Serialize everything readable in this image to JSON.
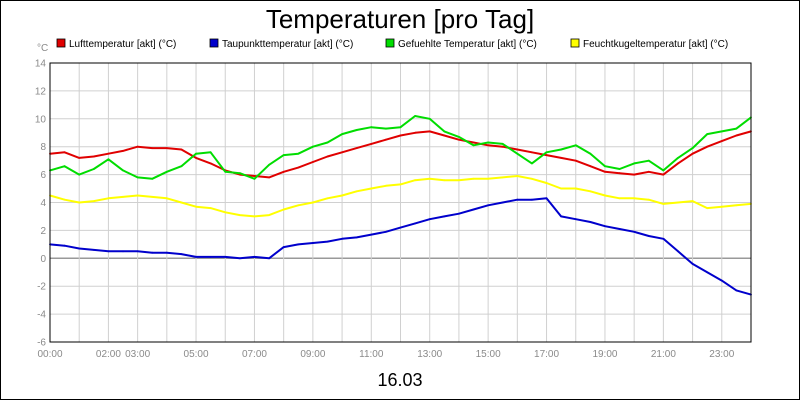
{
  "chart_data": {
    "type": "line",
    "title": "Temperaturen [pro Tag]",
    "date_label": "16.03",
    "yunit": "°C",
    "ylim": [
      -6,
      14
    ],
    "yticks": [
      -6,
      -4,
      -2,
      0,
      2,
      4,
      6,
      8,
      10,
      12,
      14
    ],
    "xlim": [
      0,
      24
    ],
    "xticks": [
      {
        "x": 0,
        "label": "00:00"
      },
      {
        "x": 2,
        "label": "02:00"
      },
      {
        "x": 3,
        "label": "03:00"
      },
      {
        "x": 5,
        "label": "05:00"
      },
      {
        "x": 7,
        "label": "07:00"
      },
      {
        "x": 9,
        "label": "09:00"
      },
      {
        "x": 11,
        "label": "11:00"
      },
      {
        "x": 13,
        "label": "13:00"
      },
      {
        "x": 15,
        "label": "15:00"
      },
      {
        "x": 17,
        "label": "17:00"
      },
      {
        "x": 19,
        "label": "19:00"
      },
      {
        "x": 21,
        "label": "21:00"
      },
      {
        "x": 23,
        "label": "23:00"
      }
    ],
    "grid": true,
    "legend_position": "top",
    "x": [
      0,
      0.5,
      1,
      1.5,
      2,
      2.5,
      3,
      3.5,
      4,
      4.5,
      5,
      5.5,
      6,
      6.5,
      7,
      7.5,
      8,
      8.5,
      9,
      9.5,
      10,
      10.5,
      11,
      11.5,
      12,
      12.5,
      13,
      13.5,
      14,
      14.5,
      15,
      15.5,
      16,
      16.5,
      17,
      17.5,
      18,
      18.5,
      19,
      19.5,
      20,
      20.5,
      21,
      21.5,
      22,
      22.5,
      23,
      23.5,
      24
    ],
    "series": [
      {
        "name": "Lufttemperatur [akt] (°C)",
        "color": "#e00000",
        "values": [
          7.5,
          7.6,
          7.2,
          7.3,
          7.5,
          7.7,
          8.0,
          7.9,
          7.9,
          7.8,
          7.2,
          6.8,
          6.3,
          6.0,
          5.9,
          5.8,
          6.2,
          6.5,
          6.9,
          7.3,
          7.6,
          7.9,
          8.2,
          8.5,
          8.8,
          9.0,
          9.1,
          8.8,
          8.5,
          8.3,
          8.1,
          8.0,
          7.8,
          7.6,
          7.4,
          7.2,
          7.0,
          6.6,
          6.2,
          6.1,
          6.0,
          6.2,
          6.0,
          6.8,
          7.5,
          8.0,
          8.4,
          8.8,
          9.1
        ]
      },
      {
        "name": "Taupunkttemperatur [akt] (°C)",
        "color": "#0000cc",
        "values": [
          1.0,
          0.9,
          0.7,
          0.6,
          0.5,
          0.5,
          0.5,
          0.4,
          0.4,
          0.3,
          0.1,
          0.1,
          0.1,
          0.0,
          0.1,
          0.0,
          0.8,
          1.0,
          1.1,
          1.2,
          1.4,
          1.5,
          1.7,
          1.9,
          2.2,
          2.5,
          2.8,
          3.0,
          3.2,
          3.5,
          3.8,
          4.0,
          4.2,
          4.2,
          4.3,
          3.0,
          2.8,
          2.6,
          2.3,
          2.1,
          1.9,
          1.6,
          1.4,
          0.5,
          -0.4,
          -1.0,
          -1.6,
          -2.3,
          -2.6
        ]
      },
      {
        "name": "Gefuehlte Temperatur [akt] (°C)",
        "color": "#00dd00",
        "values": [
          6.3,
          6.6,
          6.0,
          6.4,
          7.1,
          6.3,
          5.8,
          5.7,
          6.2,
          6.6,
          7.5,
          7.6,
          6.2,
          6.1,
          5.7,
          6.7,
          7.4,
          7.5,
          8.0,
          8.3,
          8.9,
          9.2,
          9.4,
          9.3,
          9.4,
          10.2,
          10.0,
          9.1,
          8.7,
          8.1,
          8.3,
          8.2,
          7.5,
          6.8,
          7.6,
          7.8,
          8.1,
          7.5,
          6.6,
          6.4,
          6.8,
          7.0,
          6.3,
          7.2,
          7.9,
          8.9,
          9.1,
          9.3,
          10.1
        ]
      },
      {
        "name": "Feuchtkugeltemperatur [akt] (°C)",
        "color": "#ffff00",
        "values": [
          4.5,
          4.2,
          4.0,
          4.1,
          4.3,
          4.4,
          4.5,
          4.4,
          4.3,
          4.0,
          3.7,
          3.6,
          3.3,
          3.1,
          3.0,
          3.1,
          3.5,
          3.8,
          4.0,
          4.3,
          4.5,
          4.8,
          5.0,
          5.2,
          5.3,
          5.6,
          5.7,
          5.6,
          5.6,
          5.7,
          5.7,
          5.8,
          5.9,
          5.7,
          5.4,
          5.0,
          5.0,
          4.8,
          4.5,
          4.3,
          4.3,
          4.2,
          3.9,
          4.0,
          4.1,
          3.6,
          3.7,
          3.8,
          3.9
        ]
      }
    ]
  }
}
